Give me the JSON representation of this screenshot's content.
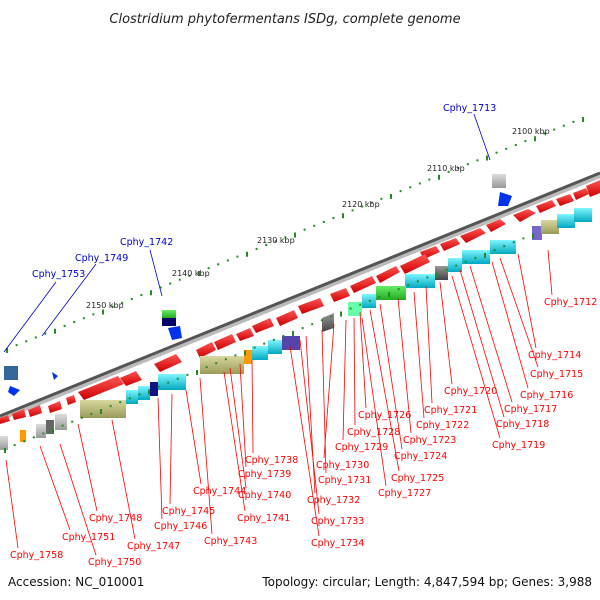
{
  "title": "Clostridium phytofermentans ISDg, complete genome",
  "footer": {
    "accession": "Accession: NC_010001",
    "summary": "Topology: circular; Length: 4,847,594 bp; Genes: 3,988"
  },
  "colors": {
    "forward_strand": "#ff0000",
    "reverse_strand": "#ff0000",
    "label_red": "#ff0000",
    "label_blue": "#0000cc",
    "tick": "#228b22",
    "backbone": "#666666"
  },
  "scale_ticks": [
    "2100 kbp",
    "2110 kbp",
    "2120 kbp",
    "2130 kbp",
    "2140 kbp",
    "2150 kbp"
  ],
  "gene_labels_blue": [
    "Cphy_1713",
    "Cphy_1742",
    "Cphy_1749",
    "Cphy_1753"
  ],
  "gene_labels_red": [
    "Cphy_1712",
    "Cphy_1714",
    "Cphy_1715",
    "Cphy_1716",
    "Cphy_1717",
    "Cphy_1718",
    "Cphy_1719",
    "Cphy_1720",
    "Cphy_1721",
    "Cphy_1722",
    "Cphy_1723",
    "Cphy_1724",
    "Cphy_1725",
    "Cphy_1726",
    "Cphy_1727",
    "Cphy_1728",
    "Cphy_1729",
    "Cphy_1730",
    "Cphy_1731",
    "Cphy_1732",
    "Cphy_1733",
    "Cphy_1734",
    "Cphy_1738",
    "Cphy_1739",
    "Cphy_1740",
    "Cphy_1741",
    "Cphy_1743",
    "Cphy_1744",
    "Cphy_1745",
    "Cphy_1746",
    "Cphy_1747",
    "Cphy_1748",
    "Cphy_1750",
    "Cphy_1751",
    "Cphy_1758"
  ]
}
